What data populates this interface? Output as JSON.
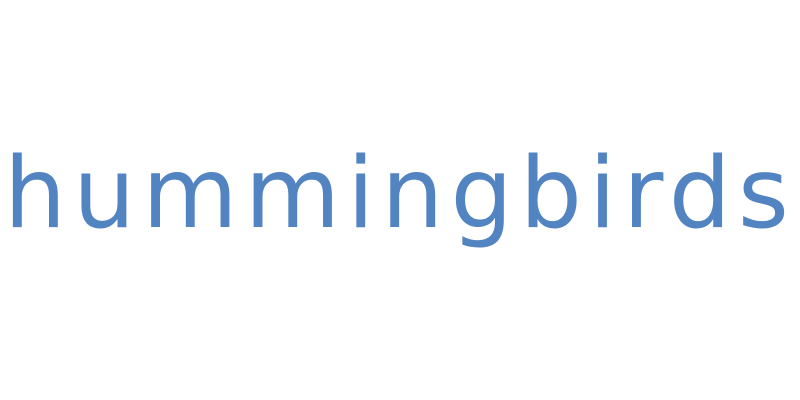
{
  "logo": {
    "text": "hummingbirds",
    "color": "#5384c2"
  },
  "background_color": "#ffffff"
}
